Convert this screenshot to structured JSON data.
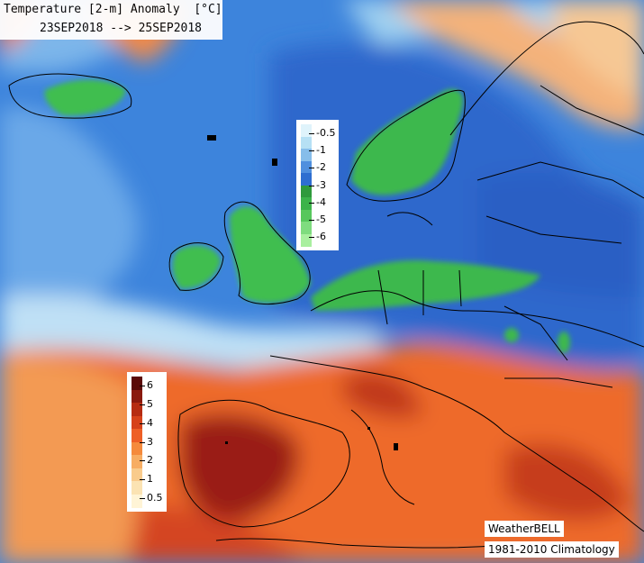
{
  "title": {
    "line1": "Temperature [2-m] Anomaly  [°C]",
    "line2": "23SEP2018 --> 25SEP2018"
  },
  "legend_cold": {
    "labels": [
      "-0.5",
      "-1",
      "-2",
      "-3",
      "-4",
      "-5",
      "-6"
    ],
    "colors": [
      "#dff3fb",
      "#b6e0f4",
      "#86bdea",
      "#4f8fde",
      "#2e6ed0",
      "#2f9a3c",
      "#3cb34a",
      "#57c75c",
      "#7fdc7f",
      "#a9ef9f"
    ]
  },
  "legend_warm": {
    "labels": [
      "6",
      "5",
      "4",
      "3",
      "2",
      "1",
      "0.5"
    ],
    "colors": [
      "#5a0a08",
      "#8a1a0e",
      "#b62c12",
      "#d6421a",
      "#ee5f26",
      "#f58a3c",
      "#f7ad63",
      "#f9cb8c",
      "#fbe3b3",
      "#fff4d6"
    ]
  },
  "credit": {
    "source": "WeatherBELL",
    "climatology": "1981-2010 Climatology"
  },
  "colors": {
    "ocean_cold": "#3f86de",
    "deep_cold": "#2b64c8",
    "cold_anomaly_green": "#3fbe4f",
    "warm_land": "#e5521f",
    "hot_core": "#8c1a0f",
    "light_margin": "#d9ecf8"
  }
}
